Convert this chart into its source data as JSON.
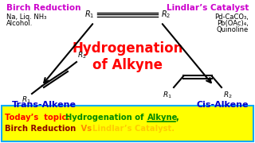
{
  "bg_color": "#ffffff",
  "bottom_bg": "#ffff00",
  "bottom_border": "#00aaff",
  "title_text": "Hydrogenation\nof Alkyne",
  "title_color": "#ff0000",
  "birch_label": "Birch Reduction",
  "birch_color": "#cc00cc",
  "birch_reagents_line1": "Na, Liq. NH₃",
  "birch_reagents_line2": "Alcohol.",
  "lindlar_label": "Lindlar’s Catalyst",
  "lindlar_color": "#cc00cc",
  "lindlar_line1": "Pd-CaCO₃,",
  "lindlar_line2": "Pb(OAc)₄,",
  "lindlar_line3": "Quinoline",
  "trans_label": "Trans-Alkene",
  "trans_color": "#0000cc",
  "cis_label": "Cis-Alkene",
  "cis_color": "#0000cc",
  "today_today": "Today’s  topic: ",
  "today_today_color": "#ff0000",
  "today_hydro": "Hydrogenation of  ",
  "today_hydro_color": "#008800",
  "today_alkyne": "Alkyne",
  "today_alkyne_color": "#008800",
  "today_comma": ",",
  "today_comma_color": "#008800",
  "today_birch": "Birch Reduction",
  "today_birch_color": "#8b0000",
  "today_vs": " Vs ",
  "today_vs_color": "#ff8800",
  "today_lindlar": "Lindlar’s Catalyst.",
  "today_lindlar_color": "#ffcc00",
  "arrow_color": "#000000"
}
